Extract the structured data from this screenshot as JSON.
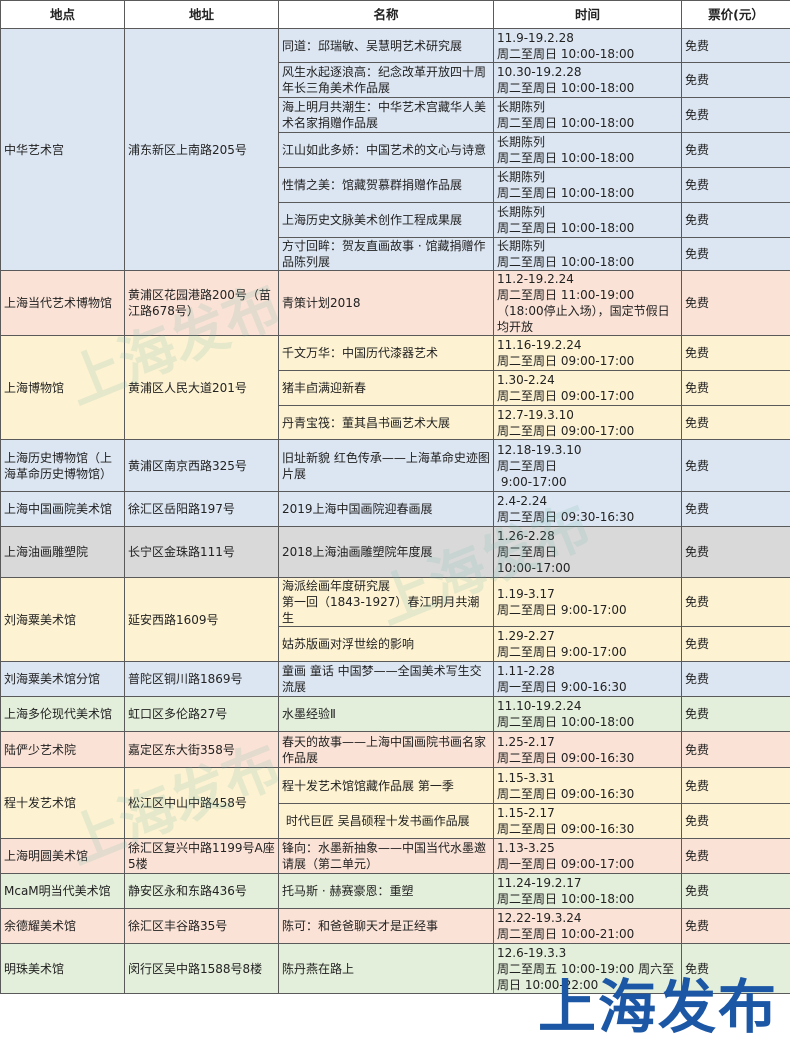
{
  "headers": [
    "地点",
    "地址",
    "名称",
    "时间",
    "票价(元）"
  ],
  "colors": {
    "blue": "#dce6f2",
    "peach": "#fbe2d6",
    "yellow": "#fdf2d1",
    "gray": "#d9d9d9",
    "green": "#e3efda",
    "logo": "#1c57a5"
  },
  "venues": [
    {
      "name": "中华艺术宫",
      "address": "浦东新区上南路205号",
      "color": "blue",
      "exhibitions": [
        {
          "title": "同道：邱瑞敏、吴慧明艺术研究展",
          "time": "11.9-19.2.28\n周二至周日 10:00-18:00",
          "price": "免费"
        },
        {
          "title": "风生水起逐浪高：纪念改革开放四十周年长三角美术作品展",
          "time": "10.30-19.2.28\n周二至周日 10:00-18:00",
          "price": "免费"
        },
        {
          "title": "海上明月共潮生：中华艺术宫藏华人美术名家捐赠作品展",
          "time": "长期陈列\n周二至周日 10:00-18:00",
          "price": "免费"
        },
        {
          "title": "江山如此多娇：中国艺术的文心与诗意",
          "time": "长期陈列\n周二至周日 10:00-18:00",
          "price": "免费"
        },
        {
          "title": "性情之美：馆藏贺慕群捐赠作品展",
          "time": "长期陈列\n周二至周日 10:00-18:00",
          "price": "免费"
        },
        {
          "title": "上海历史文脉美术创作工程成果展",
          "time": "长期陈列\n周二至周日 10:00-18:00",
          "price": "免费"
        },
        {
          "title": "方寸回眸：贺友直画故事 · 馆藏捐赠作品陈列展",
          "time": "长期陈列\n周二至周日 10:00-18:00",
          "price": "免费"
        }
      ]
    },
    {
      "name": "上海当代艺术博物馆",
      "address": "黄浦区花园港路200号（苗江路678号）",
      "color": "peach",
      "exhibitions": [
        {
          "title": "青策计划2018",
          "time": "11.2-19.2.24\n周二至周日 11:00-19:00（18:00停止入场），国定节假日均开放",
          "price": "免费"
        }
      ]
    },
    {
      "name": "上海博物馆",
      "address": "黄浦区人民大道201号",
      "color": "yellow",
      "exhibitions": [
        {
          "title": "千文万华：中国历代漆器艺术",
          "time": "11.16-19.2.24\n周二至周日 09:00-17:00",
          "price": "免费"
        },
        {
          "title": "猪丰卣满迎新春",
          "time": "1.30-2.24\n周二至周日 09:00-17:00",
          "price": "免费"
        },
        {
          "title": "丹青宝筏：董其昌书画艺术大展",
          "time": "12.7-19.3.10\n周二至周日 09:00-17:00",
          "price": "免费"
        }
      ]
    },
    {
      "name": "上海历史博物馆（上海革命历史博物馆）",
      "address": "黄浦区南京西路325号",
      "color": "blue",
      "exhibitions": [
        {
          "title": "旧址新貌 红色传承——上海革命史迹图片展",
          "time": "12.18-19.3.10\n周二至周日\n 9:00-17:00",
          "price": "免费"
        }
      ]
    },
    {
      "name": "上海中国画院美术馆",
      "address": "徐汇区岳阳路197号",
      "color": "blue",
      "exhibitions": [
        {
          "title": "2019上海中国画院迎春画展",
          "time": "2.4-2.24\n周二至周日 09:30-16:30",
          "price": "免费"
        }
      ]
    },
    {
      "name": "上海油画雕塑院",
      "address": "长宁区金珠路111号",
      "color": "gray",
      "exhibitions": [
        {
          "title": "2018上海油画雕塑院年度展",
          "time": "1.26-2.28\n周二至周日\n10:00-17:00",
          "price": "免费"
        }
      ]
    },
    {
      "name": "刘海粟美术馆",
      "address": "延安西路1609号",
      "color": "yellow",
      "exhibitions": [
        {
          "title": "海派绘画年度研究展\n第一回（1843-1927）春江明月共潮生",
          "time": "1.19-3.17\n周二至周日 9:00-17:00",
          "price": "免费"
        },
        {
          "title": "姑苏版画对浮世绘的影响",
          "time": "1.29-2.27\n周二至周日 9:00-17:00",
          "price": "免费"
        }
      ]
    },
    {
      "name": "刘海粟美术馆分馆",
      "address": "普陀区铜川路1869号",
      "color": "blue",
      "exhibitions": [
        {
          "title": "童画 童话 中国梦——全国美术写生交流展",
          "time": "1.11-2.28\n周一至周日 9:00-16:30",
          "price": "免费"
        }
      ]
    },
    {
      "name": "上海多伦现代美术馆",
      "address": "虹口区多伦路27号",
      "color": "green",
      "exhibitions": [
        {
          "title": "水墨经验Ⅱ",
          "time": "11.10-19.2.24\n周二至周日 10:00-18:00",
          "price": "免费"
        }
      ]
    },
    {
      "name": "陆俨少艺术院",
      "address": "嘉定区东大街358号",
      "color": "peach",
      "exhibitions": [
        {
          "title": "春天的故事——上海中国画院书画名家作品展",
          "time": "1.25-2.17\n周二至周日 09:00-16:30",
          "price": "免费"
        }
      ]
    },
    {
      "name": "程十发艺术馆",
      "address": "松江区中山中路458号",
      "color": "yellow",
      "exhibitions": [
        {
          "title": "程十发艺术馆馆藏作品展 第一季",
          "time": "1.15-3.31\n周二至周日 09:00-16:30",
          "price": "免费"
        },
        {
          "title": " 时代巨匠 吴昌硕程十发书画作品展",
          "time": "1.15-2.17\n周二至周日 09:00-16:30",
          "price": "免费"
        }
      ]
    },
    {
      "name": "上海明圆美术馆",
      "address": "徐汇区复兴中路1199号A座5楼",
      "color": "peach",
      "exhibitions": [
        {
          "title": "锋向：水墨新抽象——中国当代水墨邀请展（第二单元）",
          "time": "1.13-3.25\n周一至周日 09:00-17:00",
          "price": "免费"
        }
      ]
    },
    {
      "name": "McaM明当代美术馆",
      "address": "静安区永和东路436号",
      "color": "green",
      "exhibitions": [
        {
          "title": "托马斯 · 赫赛豪恩：重塑",
          "time": "11.24-19.2.17\n周二至周日 10:00-18:00",
          "price": "免费"
        }
      ]
    },
    {
      "name": "余德耀美术馆",
      "address": "徐汇区丰谷路35号",
      "color": "peach",
      "exhibitions": [
        {
          "title": "陈可：和爸爸聊天才是正经事",
          "time": "12.22-19.3.24\n周二至周日 10:00-21:00",
          "price": "免费"
        }
      ]
    },
    {
      "name": "明珠美术馆",
      "address": "闵行区吴中路1588号8楼",
      "color": "green",
      "exhibitions": [
        {
          "title": "陈丹燕在路上",
          "time": "12.6-19.3.3\n周二至周五 10:00-19:00 周六至周日 10:00-22:00",
          "price": "免费"
        }
      ]
    }
  ],
  "watermark": "上海发布",
  "logo": "上海发布"
}
